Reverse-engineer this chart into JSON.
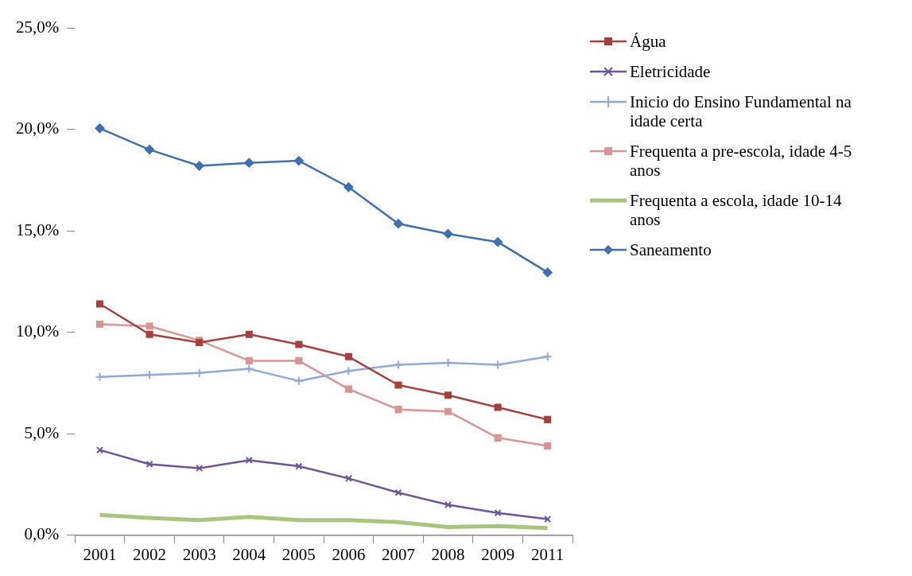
{
  "chart_data": {
    "type": "line",
    "categories": [
      "2001",
      "2002",
      "2003",
      "2004",
      "2005",
      "2006",
      "2007",
      "2008",
      "2009",
      "2011"
    ],
    "ylim": [
      0,
      25
    ],
    "yticks": [
      {
        "value": 0,
        "label": "0,0%"
      },
      {
        "value": 5,
        "label": "5,0%"
      },
      {
        "value": 10,
        "label": "10,0%"
      },
      {
        "value": 15,
        "label": "15,0%"
      },
      {
        "value": 20,
        "label": "20,0%"
      },
      {
        "value": 25,
        "label": "25,0%"
      }
    ],
    "grid": false,
    "legend": "right",
    "line_style": "solid",
    "series": [
      {
        "name": "Água",
        "color": "#a5403d",
        "marker": "square",
        "values": [
          11.4,
          9.9,
          9.5,
          9.9,
          9.4,
          8.8,
          7.4,
          6.9,
          6.3,
          5.7
        ]
      },
      {
        "name": "Eletricidade",
        "color": "#6e5598",
        "marker": "x",
        "values": [
          4.2,
          3.5,
          3.3,
          3.7,
          3.4,
          2.8,
          2.1,
          1.5,
          1.1,
          0.8
        ]
      },
      {
        "name": "Inicio do Ensino Fundamental na idade certa",
        "color": "#8eaad8",
        "marker": "cross",
        "values": [
          7.8,
          7.9,
          8.0,
          8.2,
          7.6,
          8.1,
          8.4,
          8.5,
          8.4,
          8.8
        ]
      },
      {
        "name": "Frequenta a pre-escola, idade 4-5 anos",
        "color": "#d99594",
        "marker": "square",
        "values": [
          10.4,
          10.3,
          9.6,
          8.6,
          8.6,
          7.2,
          6.2,
          6.1,
          4.8,
          4.4
        ]
      },
      {
        "name": "Frequenta a escola, idade 10-14 anos",
        "color": "#a9c47f",
        "marker": "none",
        "values": [
          1.0,
          0.85,
          0.75,
          0.9,
          0.75,
          0.75,
          0.65,
          0.4,
          0.45,
          0.35
        ]
      },
      {
        "name": "Saneamento",
        "color": "#3f70b0",
        "marker": "diamond",
        "values": [
          20.05,
          19.0,
          18.2,
          18.35,
          18.45,
          17.15,
          15.35,
          14.85,
          14.45,
          12.95
        ]
      }
    ]
  }
}
